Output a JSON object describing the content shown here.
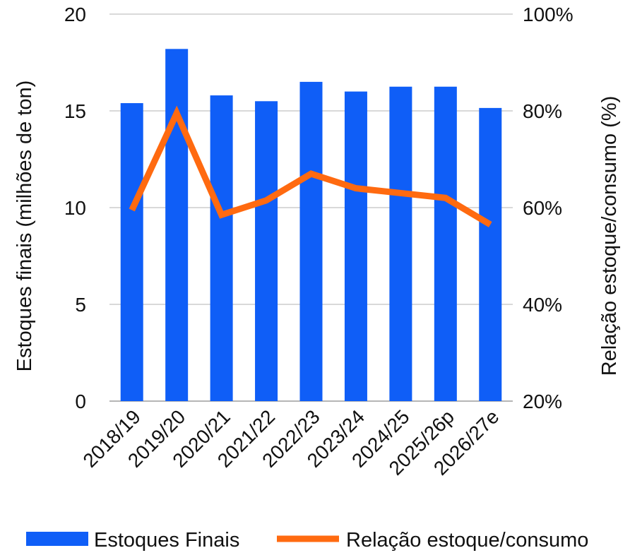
{
  "chart_data": {
    "type": "bar",
    "categories": [
      "2018/19",
      "2019/20",
      "2020/21",
      "2021/22",
      "2022/23",
      "2023/24",
      "2024/25",
      "2025/26p",
      "2026/27e"
    ],
    "series": [
      {
        "name": "Estoques Finais",
        "type": "bar",
        "axis": "left",
        "color": "#0f5ef7",
        "values": [
          15.4,
          18.2,
          15.8,
          15.5,
          16.5,
          16.0,
          16.25,
          16.25,
          15.15
        ]
      },
      {
        "name": "Relação estoque/consumo",
        "type": "line",
        "axis": "right",
        "color": "#ff6a10",
        "values": [
          59.5,
          79.5,
          58.5,
          61.5,
          67.0,
          64.0,
          63.0,
          62.0,
          56.5
        ]
      }
    ],
    "ylabel": "Estoques finais (milhões de ton)",
    "ylabel_right": "Relação estoque/consumo (%)",
    "ylim": [
      0,
      20
    ],
    "ylim_right": [
      20,
      100
    ],
    "yticks": [
      "0",
      "5",
      "10",
      "15",
      "20"
    ],
    "yticks_right": [
      "20%",
      "40%",
      "60%",
      "80%",
      "100%"
    ],
    "grid": true,
    "legend_position": "bottom"
  }
}
